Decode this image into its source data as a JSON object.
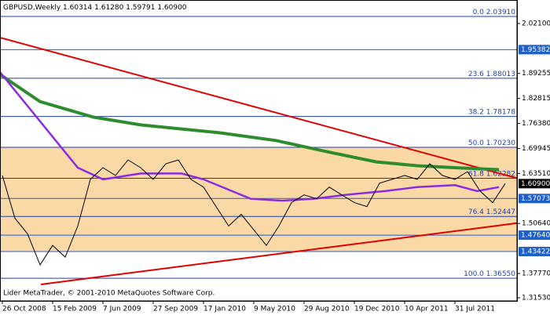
{
  "chart_data": {
    "type": "line",
    "symbol": "GBPUSD,Weekly",
    "ohlc": [
      {
        "value": 1.60314,
        "label": "1.60314"
      },
      {
        "value": 1.6128,
        "label": "1.61280"
      },
      {
        "value": 1.59791,
        "label": "1.59791"
      },
      {
        "value": 1.609,
        "label": "1.60900"
      }
    ],
    "footer": "Lider MetaTrader, © 2001-2010 MetaQuotes Software Corp.",
    "xlim": [
      -0.75,
      163.75
    ],
    "xticks": [
      {
        "value": 0,
        "label": "26 Oct 2008"
      },
      {
        "value": 16,
        "label": "15 Feb 2009"
      },
      {
        "value": 32,
        "label": "7 Jun 2009"
      },
      {
        "value": 48,
        "label": "27 Sep 2009"
      },
      {
        "value": 64,
        "label": "17 Jan 2010"
      },
      {
        "value": 80,
        "label": "9 May 2010"
      },
      {
        "value": 96,
        "label": "29 Aug 2010"
      },
      {
        "value": 112,
        "label": "19 Dec 2010"
      },
      {
        "value": 128,
        "label": "10 Apr 2011"
      },
      {
        "value": 144,
        "label": "31 Jul 2011"
      }
    ],
    "ylim": [
      1.3072,
      2.0815
    ],
    "yticks": [
      {
        "value": 2.021,
        "label": "2.02100"
      },
      {
        "value": 1.89255,
        "label": "1.89255"
      },
      {
        "value": 1.82815,
        "label": "1.82815"
      },
      {
        "value": 1.7638,
        "label": "1.76380"
      },
      {
        "value": 1.69945,
        "label": "1.69945"
      },
      {
        "value": 1.6351,
        "label": "1.63510"
      },
      {
        "value": 1.5064,
        "label": "1.50640"
      },
      {
        "value": 1.3777,
        "label": "1.37770"
      },
      {
        "value": 1.3153,
        "label": "1.31530"
      }
    ],
    "band": {
      "values": [
        1.43422,
        1.7023
      ],
      "color": "#fbd9a6"
    },
    "hlines": [
      {
        "value": 1.95382,
        "label": "1.95382",
        "color": "#1f5fc8"
      },
      {
        "value": 1.609,
        "label": "1.60900",
        "color": "#000000"
      },
      {
        "value": 1.57073,
        "label": "1.57073",
        "color": "#1f5fc8"
      },
      {
        "value": 1.4764,
        "label": "1.47640",
        "color": "#1f5fc8"
      },
      {
        "value": 1.43422,
        "label": "1.43422",
        "color": "#1f5fc8"
      }
    ],
    "fibonacci": {
      "color": "#1f3fa8",
      "levels": [
        {
          "level": {
            "value": 0,
            "label": "0.0"
          },
          "price": {
            "value": 2.0391,
            "label": "2.03910"
          }
        },
        {
          "level": 23.6,
          "price": {
            "value": 1.88013,
            "label": "1.88013"
          }
        },
        {
          "level": 38.2,
          "price": {
            "value": 1.78178,
            "label": "1.78178"
          }
        },
        {
          "level": {
            "value": 50,
            "label": "50.0"
          },
          "price": {
            "value": 1.7023,
            "label": "1.70230"
          }
        },
        {
          "level": 61.8,
          "price": {
            "value": 1.62282,
            "label": "1.62282"
          }
        },
        {
          "level": 76.4,
          "price": {
            "value": 1.52447,
            "label": "1.52447"
          }
        },
        {
          "level": {
            "value": 100,
            "label": "100.0"
          },
          "price": {
            "value": 1.3655,
            "label": "1.36550"
          }
        }
      ]
    },
    "trendlines": [
      {
        "color": "#e00000",
        "x": [
          -0.75,
          163.75
        ],
        "values": [
          1.9847,
          1.623
        ]
      },
      {
        "color": "#e00000",
        "x": [
          12.25,
          163.75
        ],
        "values": [
          1.3496,
          1.5073
        ]
      }
    ],
    "series": [
      {
        "color": "#2e8b2e",
        "width": 4,
        "x": [
          -0.75,
          12,
          29,
          44,
          69,
          87,
          104,
          119,
          132,
          144,
          158
        ],
        "values": [
          1.89,
          1.82,
          1.78,
          1.76,
          1.74,
          1.72,
          1.69,
          1.665,
          1.655,
          1.65,
          1.645
        ]
      },
      {
        "color": "#8a2be2",
        "width": 2.5,
        "x": [
          -0.75,
          24,
          32,
          44,
          57,
          64,
          79,
          89,
          99,
          109,
          122,
          132,
          144,
          151,
          158
        ],
        "values": [
          1.896,
          1.65,
          1.62,
          1.635,
          1.635,
          1.62,
          1.57,
          1.565,
          1.57,
          1.58,
          1.59,
          1.6,
          1.605,
          1.59,
          1.6
        ]
      },
      {
        "color": "#000000",
        "width": 1,
        "x": [
          0,
          4,
          8,
          12,
          16,
          20,
          24,
          28,
          32,
          36,
          40,
          44,
          48,
          52,
          56,
          60,
          64,
          68,
          72,
          76,
          80,
          84,
          88,
          92,
          96,
          100,
          104,
          108,
          112,
          116,
          120,
          124,
          128,
          132,
          136,
          140,
          144,
          148,
          152,
          156,
          160
        ],
        "values": [
          1.63,
          1.52,
          1.48,
          1.4,
          1.45,
          1.42,
          1.5,
          1.62,
          1.65,
          1.63,
          1.67,
          1.65,
          1.62,
          1.66,
          1.67,
          1.62,
          1.6,
          1.55,
          1.5,
          1.53,
          1.49,
          1.45,
          1.5,
          1.56,
          1.58,
          1.57,
          1.6,
          1.58,
          1.56,
          1.55,
          1.61,
          1.62,
          1.63,
          1.62,
          1.66,
          1.63,
          1.62,
          1.64,
          1.59,
          1.56,
          1.609
        ]
      }
    ]
  }
}
